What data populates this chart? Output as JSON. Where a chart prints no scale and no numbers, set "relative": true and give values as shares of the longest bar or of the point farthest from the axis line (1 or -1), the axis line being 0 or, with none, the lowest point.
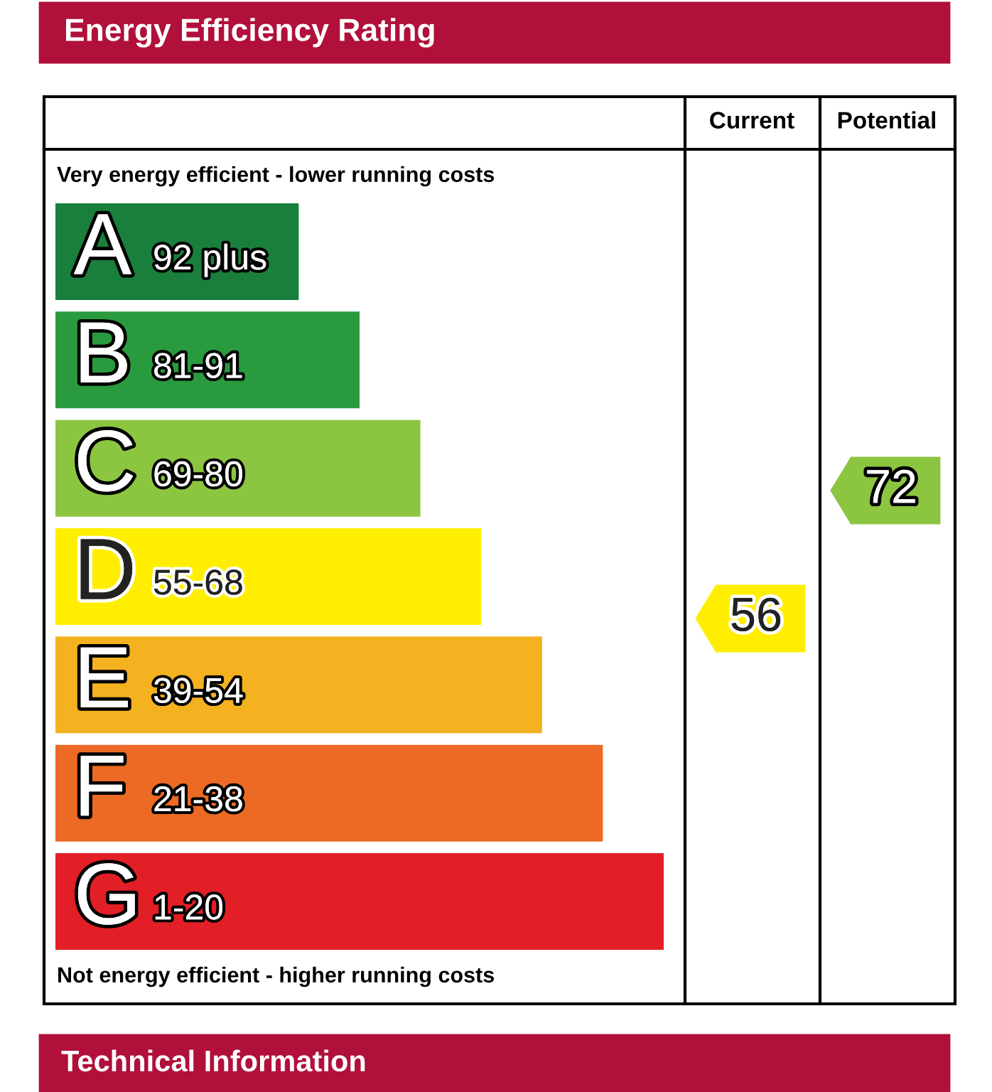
{
  "chart_data": {
    "type": "bar",
    "orientation": "horizontal",
    "relative": true,
    "title": "Energy Efficiency Rating",
    "categories": [
      "A",
      "B",
      "C",
      "D",
      "E",
      "F",
      "G"
    ],
    "values": [
      0.4,
      0.5,
      0.6,
      0.7,
      0.8,
      0.9,
      1.0
    ],
    "colors": [
      "#1a7f3c",
      "#2a9a3f",
      "#8cc540",
      "#ffee00",
      "#f4b120",
      "#ec6a24",
      "#e21f26"
    ],
    "annotations": [
      "Very energy efficient - lower running costs",
      "Not energy efficient - higher running costs",
      "Current",
      "Potential",
      "56",
      "72",
      "92 plus",
      "81-91",
      "69-80",
      "55-68",
      "39-54",
      "21-38",
      "1-20",
      "Technical Information"
    ]
  }
}
